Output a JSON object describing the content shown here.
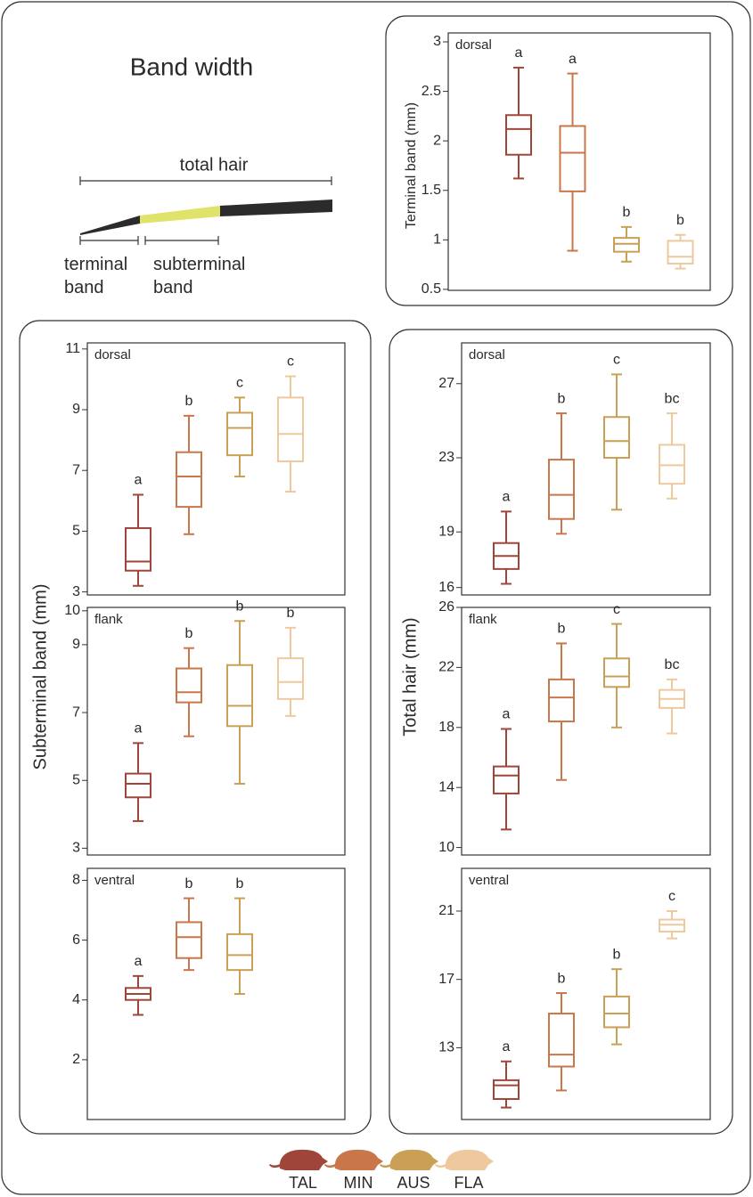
{
  "title": "Band width",
  "hair_diagram": {
    "total_label": "total hair",
    "terminal_label": "terminal band",
    "subterminal_label": "subterminal band"
  },
  "legend": [
    {
      "name": "TAL",
      "color": "#a0453a"
    },
    {
      "name": "MIN",
      "color": "#c9774a"
    },
    {
      "name": "AUS",
      "color": "#c9a055"
    },
    {
      "name": "FLA",
      "color": "#efc99e"
    }
  ],
  "chart_data": [
    {
      "type": "box",
      "panel_label": "dorsal",
      "ylabel": "Terminal band  (mm)",
      "ylim": [
        0.49,
        3.09
      ],
      "yticks": [
        0.5,
        1,
        1.5,
        2,
        2.5,
        3
      ],
      "boxes": [
        {
          "min": 1.62,
          "q1": 1.86,
          "median": 2.12,
          "q3": 2.26,
          "max": 2.74,
          "label": "a"
        },
        {
          "min": 0.89,
          "q1": 1.49,
          "median": 1.88,
          "q3": 2.15,
          "max": 2.68,
          "label": "a"
        },
        {
          "min": 0.78,
          "q1": 0.88,
          "median": 0.96,
          "q3": 1.02,
          "max": 1.13,
          "label": "b"
        },
        {
          "min": 0.71,
          "q1": 0.76,
          "median": 0.83,
          "q3": 0.99,
          "max": 1.05,
          "label": "b"
        }
      ]
    },
    {
      "type": "box",
      "panel_label": "dorsal",
      "ylim": [
        2.9,
        11.2
      ],
      "yticks": [
        3,
        5,
        7,
        9,
        11
      ],
      "boxes": [
        {
          "min": 3.2,
          "q1": 3.7,
          "median": 4.0,
          "q3": 5.1,
          "max": 6.2,
          "label": "a"
        },
        {
          "min": 4.9,
          "q1": 5.8,
          "median": 6.8,
          "q3": 7.6,
          "max": 8.8,
          "label": "b"
        },
        {
          "min": 6.8,
          "q1": 7.5,
          "median": 8.4,
          "q3": 8.9,
          "max": 9.4,
          "label": "c"
        },
        {
          "min": 6.3,
          "q1": 7.3,
          "median": 8.2,
          "q3": 9.4,
          "max": 10.1,
          "label": "c"
        }
      ]
    },
    {
      "type": "box",
      "panel_label": "flank",
      "ylabel": "Subterminal band  (mm)",
      "ylim": [
        2.8,
        10.1
      ],
      "yticks": [
        3,
        5,
        7,
        9,
        10
      ],
      "boxes": [
        {
          "min": 3.8,
          "q1": 4.5,
          "median": 4.9,
          "q3": 5.2,
          "max": 6.1,
          "label": "a"
        },
        {
          "min": 6.3,
          "q1": 7.3,
          "median": 7.6,
          "q3": 8.3,
          "max": 8.9,
          "label": "b"
        },
        {
          "min": 4.9,
          "q1": 6.6,
          "median": 7.2,
          "q3": 8.4,
          "max": 9.7,
          "label": "b"
        },
        {
          "min": 6.9,
          "q1": 7.4,
          "median": 7.9,
          "q3": 8.6,
          "max": 9.5,
          "label": "b"
        }
      ]
    },
    {
      "type": "box",
      "panel_label": "ventral",
      "ylim": [
        0,
        8.4
      ],
      "yticks": [
        2,
        4,
        6,
        8
      ],
      "boxes": [
        {
          "min": 3.5,
          "q1": 4.0,
          "median": 4.2,
          "q3": 4.4,
          "max": 4.8,
          "label": "a"
        },
        {
          "min": 5.0,
          "q1": 5.4,
          "median": 6.1,
          "q3": 6.6,
          "max": 7.4,
          "label": "b"
        },
        {
          "min": 4.2,
          "q1": 5.0,
          "median": 5.5,
          "q3": 6.2,
          "max": 7.4,
          "label": "b"
        }
      ]
    },
    {
      "type": "box",
      "panel_label": "dorsal",
      "ylim": [
        15.6,
        29.2
      ],
      "yticks": [
        16,
        19,
        23,
        27
      ],
      "boxes": [
        {
          "min": 16.2,
          "q1": 17.0,
          "median": 17.7,
          "q3": 18.4,
          "max": 20.1,
          "label": "a"
        },
        {
          "min": 18.9,
          "q1": 19.7,
          "median": 21.0,
          "q3": 22.9,
          "max": 25.4,
          "label": "b"
        },
        {
          "min": 20.2,
          "q1": 23.0,
          "median": 23.9,
          "q3": 25.2,
          "max": 27.5,
          "label": "c"
        },
        {
          "min": 20.8,
          "q1": 21.6,
          "median": 22.6,
          "q3": 23.7,
          "max": 25.4,
          "label": "bc"
        }
      ]
    },
    {
      "type": "box",
      "panel_label": "flank",
      "ylabel": "Total hair (mm)",
      "ylim": [
        9.5,
        26
      ],
      "yticks": [
        10,
        14,
        18,
        22,
        26
      ],
      "boxes": [
        {
          "min": 11.2,
          "q1": 13.6,
          "median": 14.8,
          "q3": 15.4,
          "max": 17.9,
          "label": "a"
        },
        {
          "min": 14.5,
          "q1": 18.4,
          "median": 20.0,
          "q3": 21.2,
          "max": 23.6,
          "label": "b"
        },
        {
          "min": 18.0,
          "q1": 20.7,
          "median": 21.4,
          "q3": 22.6,
          "max": 24.9,
          "label": "c"
        },
        {
          "min": 17.6,
          "q1": 19.3,
          "median": 19.9,
          "q3": 20.5,
          "max": 21.2,
          "label": "bc"
        }
      ]
    },
    {
      "type": "box",
      "panel_label": "ventral",
      "ylim": [
        8.8,
        23.5
      ],
      "yticks": [
        13,
        17,
        21
      ],
      "boxes": [
        {
          "min": 9.5,
          "q1": 10.0,
          "median": 10.8,
          "q3": 11.1,
          "max": 12.2,
          "label": "a"
        },
        {
          "min": 10.5,
          "q1": 11.9,
          "median": 12.6,
          "q3": 15.0,
          "max": 16.2,
          "label": "b"
        },
        {
          "min": 13.2,
          "q1": 14.2,
          "median": 15.0,
          "q3": 16.0,
          "max": 17.6,
          "label": "b"
        },
        {
          "min": 19.4,
          "q1": 19.8,
          "median": 20.2,
          "q3": 20.5,
          "max": 21.0,
          "label": "c"
        }
      ]
    }
  ]
}
